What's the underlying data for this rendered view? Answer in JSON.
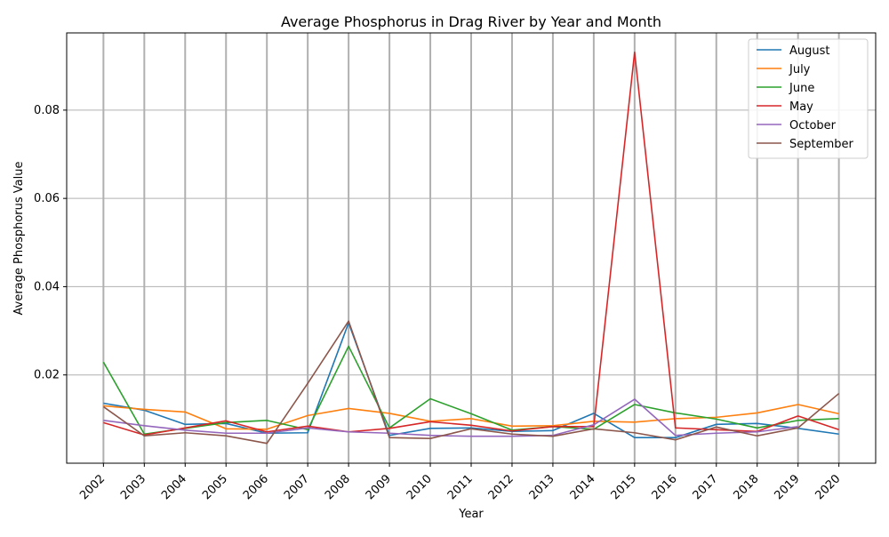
{
  "chart_data": {
    "type": "line",
    "title": "Average Phosphorus in Drag River by Year and Month",
    "xlabel": "Year",
    "ylabel": "Average Phosphorus Value",
    "x": [
      2002,
      2003,
      2004,
      2005,
      2006,
      2007,
      2008,
      2009,
      2010,
      2011,
      2012,
      2013,
      2014,
      2015,
      2016,
      2017,
      2018,
      2019,
      2020
    ],
    "ylim": [
      0.0,
      0.0975
    ],
    "yticks": [
      0.02,
      0.04,
      0.06,
      0.08
    ],
    "ytick_labels": [
      "0.02",
      "0.04",
      "0.06",
      "0.08"
    ],
    "grid": true,
    "legend_position": "top-right",
    "series": [
      {
        "name": "August",
        "color": "#1f77b4",
        "values": [
          0.0136,
          0.012,
          0.0088,
          0.009,
          0.0068,
          0.0069,
          0.0318,
          0.0063,
          0.0079,
          0.008,
          0.0072,
          0.0074,
          0.0113,
          0.0058,
          0.0058,
          0.0088,
          0.009,
          0.0079,
          0.0066
        ]
      },
      {
        "name": "July",
        "color": "#ff7f0e",
        "values": [
          0.013,
          0.0122,
          0.0116,
          0.0078,
          0.0077,
          0.0108,
          0.0124,
          0.0113,
          0.0095,
          0.0101,
          0.0084,
          0.0085,
          0.0095,
          0.0093,
          0.0101,
          0.0104,
          0.0114,
          0.0133,
          0.0112
        ]
      },
      {
        "name": "June",
        "color": "#2ca02c",
        "values": [
          0.0229,
          0.0066,
          0.0079,
          0.0092,
          0.0097,
          0.0076,
          0.0265,
          0.008,
          0.0146,
          0.0112,
          0.0075,
          0.0083,
          0.0077,
          0.0133,
          0.0114,
          0.01,
          0.008,
          0.0097,
          0.0101
        ]
      },
      {
        "name": "May",
        "color": "#d62728",
        "values": [
          0.0092,
          0.0064,
          0.008,
          0.0096,
          0.0071,
          0.0084,
          0.0071,
          0.0079,
          0.0094,
          0.0086,
          0.0073,
          0.0083,
          0.0083,
          0.0931,
          0.008,
          0.0076,
          0.0072,
          0.0107,
          0.0076
        ]
      },
      {
        "name": "October",
        "color": "#9467bd",
        "values": [
          0.0097,
          0.0085,
          0.0075,
          0.0068,
          0.0068,
          0.008,
          0.0071,
          0.0068,
          0.0063,
          0.0061,
          0.0061,
          0.0063,
          0.0087,
          0.0145,
          0.0063,
          0.0068,
          0.0071,
          0.0083,
          null
        ]
      },
      {
        "name": "September",
        "color": "#8c564b",
        "values": [
          0.0128,
          0.0062,
          0.0069,
          0.0062,
          0.0045,
          0.0181,
          0.0322,
          0.0058,
          0.0056,
          0.0078,
          0.0066,
          0.0061,
          0.0078,
          0.0069,
          0.0053,
          0.0082,
          0.0062,
          0.008,
          0.0158
        ]
      }
    ]
  }
}
